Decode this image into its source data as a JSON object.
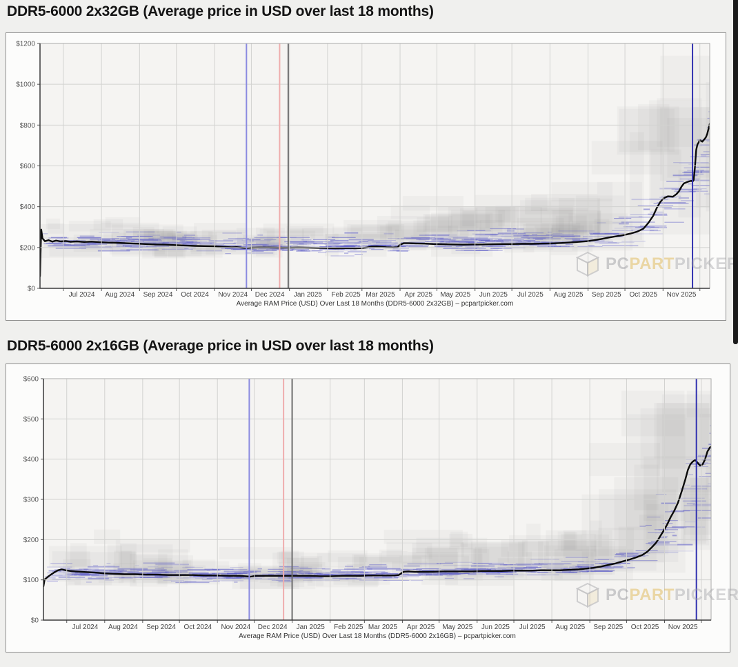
{
  "page": {
    "background": "#f0f0ee"
  },
  "watermark": {
    "pc": "PC",
    "part": "PART",
    "picker": "PICKER"
  },
  "chart_data": [
    {
      "type": "line",
      "title": "DDR5-6000 2x32GB (Average price in USD over last 18 months)",
      "caption": "Average RAM Price (USD) Over Last 18 Months (DDR5-6000 2x32GB) – pcpartpicker.com",
      "ylim": [
        0,
        1200
      ],
      "yticks": [
        {
          "label": "$0",
          "value": 0
        },
        {
          "label": "$200",
          "value": 200
        },
        {
          "label": "$400",
          "value": 400
        },
        {
          "label": "$600",
          "value": 600
        },
        {
          "label": "$800",
          "value": 800
        },
        {
          "label": "$1000",
          "value": 1000
        },
        {
          "label": "$1200",
          "value": 1200
        }
      ],
      "x_total_days": 545,
      "months": [
        {
          "label": "Jul 2024",
          "day": 19
        },
        {
          "label": "Aug 2024",
          "day": 50
        },
        {
          "label": "Sep 2024",
          "day": 81
        },
        {
          "label": "Oct 2024",
          "day": 111
        },
        {
          "label": "Nov 2024",
          "day": 142
        },
        {
          "label": "Dec 2024",
          "day": 172
        },
        {
          "label": "Jan 2025",
          "day": 203
        },
        {
          "label": "Feb 2025",
          "day": 234
        },
        {
          "label": "Mar 2025",
          "day": 262
        },
        {
          "label": "Apr 2025",
          "day": 293
        },
        {
          "label": "May 2025",
          "day": 323
        },
        {
          "label": "Jun 2025",
          "day": 354
        },
        {
          "label": "Jul 2025",
          "day": 384
        },
        {
          "label": "Aug 2025",
          "day": 415
        },
        {
          "label": "Sep 2025",
          "day": 446
        },
        {
          "label": "Oct 2025",
          "day": 476
        },
        {
          "label": "Nov 2025",
          "day": 507
        }
      ],
      "extra_month_gridline_day": 537,
      "vlines": [
        {
          "day": 168,
          "color": "#8a8ae0",
          "name": "blue-vline"
        },
        {
          "day": 195,
          "color": "#efadad",
          "name": "red-vline"
        },
        {
          "day": 202,
          "color": "#6e6e6e",
          "name": "dark-vline"
        },
        {
          "day": 531,
          "color": "#3232b0",
          "name": "navy-vline"
        }
      ],
      "average_series": [
        [
          0,
          60
        ],
        [
          0.6,
          210
        ],
        [
          1,
          288
        ],
        [
          2,
          245
        ],
        [
          4,
          231
        ],
        [
          7,
          236
        ],
        [
          10,
          229
        ],
        [
          13,
          234
        ],
        [
          17,
          230
        ],
        [
          21,
          232
        ],
        [
          25,
          228
        ],
        [
          30,
          230
        ],
        [
          36,
          227
        ],
        [
          42,
          229
        ],
        [
          48,
          226
        ],
        [
          55,
          224
        ],
        [
          62,
          223
        ],
        [
          70,
          221
        ],
        [
          78,
          219
        ],
        [
          86,
          217
        ],
        [
          94,
          215
        ],
        [
          102,
          214
        ],
        [
          110,
          212
        ],
        [
          118,
          210
        ],
        [
          126,
          208
        ],
        [
          134,
          207
        ],
        [
          142,
          206
        ],
        [
          150,
          203
        ],
        [
          156,
          201
        ],
        [
          160,
          202
        ],
        [
          164,
          199
        ],
        [
          168,
          197
        ],
        [
          172,
          199
        ],
        [
          178,
          200
        ],
        [
          186,
          200
        ],
        [
          194,
          199
        ],
        [
          202,
          199
        ],
        [
          210,
          200
        ],
        [
          218,
          199
        ],
        [
          226,
          198
        ],
        [
          234,
          197
        ],
        [
          242,
          196
        ],
        [
          250,
          197
        ],
        [
          256,
          196
        ],
        [
          262,
          197
        ],
        [
          266,
          200
        ],
        [
          270,
          204
        ],
        [
          274,
          205
        ],
        [
          278,
          203
        ],
        [
          282,
          201
        ],
        [
          287,
          200
        ],
        [
          291,
          201
        ],
        [
          293,
          214
        ],
        [
          296,
          221
        ],
        [
          300,
          221
        ],
        [
          306,
          220
        ],
        [
          313,
          219
        ],
        [
          320,
          217
        ],
        [
          328,
          216
        ],
        [
          336,
          215
        ],
        [
          344,
          214
        ],
        [
          352,
          215
        ],
        [
          360,
          215
        ],
        [
          368,
          216
        ],
        [
          376,
          217
        ],
        [
          384,
          217
        ],
        [
          392,
          218
        ],
        [
          400,
          218
        ],
        [
          408,
          219
        ],
        [
          416,
          220
        ],
        [
          424,
          222
        ],
        [
          432,
          225
        ],
        [
          439,
          228
        ],
        [
          445,
          231
        ],
        [
          451,
          236
        ],
        [
          457,
          242
        ],
        [
          463,
          249
        ],
        [
          469,
          255
        ],
        [
          475,
          261
        ],
        [
          481,
          269
        ],
        [
          486,
          278
        ],
        [
          491,
          292
        ],
        [
          495,
          320
        ],
        [
          499,
          355
        ],
        [
          502,
          395
        ],
        [
          505,
          425
        ],
        [
          508,
          443
        ],
        [
          511,
          451
        ],
        [
          515,
          449
        ],
        [
          518,
          462
        ],
        [
          520,
          476
        ],
        [
          522,
          498
        ],
        [
          524,
          514
        ],
        [
          527,
          522
        ],
        [
          530,
          527
        ],
        [
          531,
          523
        ],
        [
          532,
          531
        ],
        [
          533,
          595
        ],
        [
          534,
          678
        ],
        [
          535,
          705
        ],
        [
          536,
          715
        ],
        [
          537,
          727
        ],
        [
          538,
          722
        ],
        [
          539,
          719
        ],
        [
          540,
          726
        ],
        [
          541,
          733
        ],
        [
          542,
          742
        ],
        [
          543,
          757
        ],
        [
          544,
          781
        ],
        [
          545,
          806
        ]
      ],
      "band_envelope": [
        [
          0,
          165,
          300,
          150,
          320
        ],
        [
          100,
          160,
          295,
          145,
          315
        ],
        [
          170,
          150,
          285,
          140,
          300
        ],
        [
          200,
          150,
          280,
          140,
          300
        ],
        [
          260,
          155,
          285,
          145,
          310
        ],
        [
          290,
          160,
          300,
          150,
          360
        ],
        [
          330,
          165,
          310,
          150,
          400
        ],
        [
          380,
          170,
          315,
          155,
          420
        ],
        [
          420,
          170,
          320,
          160,
          430
        ],
        [
          446,
          175,
          340,
          160,
          480
        ],
        [
          462,
          180,
          380,
          165,
          560
        ],
        [
          476,
          190,
          450,
          170,
          700
        ],
        [
          490,
          200,
          560,
          180,
          850
        ],
        [
          505,
          230,
          700,
          200,
          1000
        ],
        [
          515,
          260,
          780,
          220,
          1020
        ],
        [
          525,
          300,
          850,
          250,
          1040
        ],
        [
          535,
          380,
          920,
          300,
          1060
        ],
        [
          545,
          450,
          960,
          350,
          1080
        ]
      ],
      "colors": {
        "average_line": "#0a0a0a",
        "listing_dash": "#5a5ac8",
        "range_fill": "#70707a",
        "grid": "#d2d2d0",
        "plot_bg": "#f5f4f2",
        "axis": "#3a3a3a"
      },
      "seed": 7
    },
    {
      "type": "line",
      "title": "DDR5-6000 2x16GB (Average price in USD over last 18 months)",
      "caption": "Average RAM Price (USD) Over Last 18 Months (DDR5-6000 2x16GB) – pcpartpicker.com",
      "ylim": [
        0,
        600
      ],
      "yticks": [
        {
          "label": "$0",
          "value": 0
        },
        {
          "label": "$100",
          "value": 100
        },
        {
          "label": "$200",
          "value": 200
        },
        {
          "label": "$300",
          "value": 300
        },
        {
          "label": "$400",
          "value": 400
        },
        {
          "label": "$500",
          "value": 500
        },
        {
          "label": "$600",
          "value": 600
        }
      ],
      "x_total_days": 545,
      "months": [
        {
          "label": "Jul 2024",
          "day": 19
        },
        {
          "label": "Aug 2024",
          "day": 50
        },
        {
          "label": "Sep 2024",
          "day": 81
        },
        {
          "label": "Oct 2024",
          "day": 111
        },
        {
          "label": "Nov 2024",
          "day": 142
        },
        {
          "label": "Dec 2024",
          "day": 172
        },
        {
          "label": "Jan 2025",
          "day": 203
        },
        {
          "label": "Feb 2025",
          "day": 234
        },
        {
          "label": "Mar 2025",
          "day": 262
        },
        {
          "label": "Apr 2025",
          "day": 293
        },
        {
          "label": "May 2025",
          "day": 323
        },
        {
          "label": "Jun 2025",
          "day": 354
        },
        {
          "label": "Jul 2025",
          "day": 384
        },
        {
          "label": "Aug 2025",
          "day": 415
        },
        {
          "label": "Sep 2025",
          "day": 446
        },
        {
          "label": "Oct 2025",
          "day": 476
        },
        {
          "label": "Nov 2025",
          "day": 507
        }
      ],
      "extra_month_gridline_day": 537,
      "vlines": [
        {
          "day": 168,
          "color": "#8a8ae0",
          "name": "blue-vline"
        },
        {
          "day": 196,
          "color": "#efadad",
          "name": "red-vline"
        },
        {
          "day": 203,
          "color": "#6e6e6e",
          "name": "dark-vline"
        },
        {
          "day": 533,
          "color": "#3232b0",
          "name": "navy-vline"
        }
      ],
      "average_series": [
        [
          0,
          84
        ],
        [
          0.6,
          95
        ],
        [
          1,
          101
        ],
        [
          3,
          106
        ],
        [
          6,
          113
        ],
        [
          9,
          119
        ],
        [
          12,
          124
        ],
        [
          15,
          126
        ],
        [
          18,
          124
        ],
        [
          22,
          122
        ],
        [
          26,
          121
        ],
        [
          31,
          120
        ],
        [
          37,
          119
        ],
        [
          43,
          118
        ],
        [
          50,
          116
        ],
        [
          58,
          115
        ],
        [
          66,
          114
        ],
        [
          75,
          114
        ],
        [
          84,
          113
        ],
        [
          93,
          113
        ],
        [
          102,
          112
        ],
        [
          112,
          112
        ],
        [
          122,
          112
        ],
        [
          132,
          111
        ],
        [
          142,
          111
        ],
        [
          152,
          110
        ],
        [
          160,
          110
        ],
        [
          165,
          109
        ],
        [
          169,
          108
        ],
        [
          173,
          110
        ],
        [
          181,
          110
        ],
        [
          190,
          110
        ],
        [
          199,
          110
        ],
        [
          208,
          110
        ],
        [
          217,
          110
        ],
        [
          226,
          109
        ],
        [
          235,
          109
        ],
        [
          244,
          110
        ],
        [
          252,
          110
        ],
        [
          259,
          110
        ],
        [
          265,
          111
        ],
        [
          272,
          111
        ],
        [
          279,
          111
        ],
        [
          286,
          111
        ],
        [
          290,
          112
        ],
        [
          292,
          116
        ],
        [
          294,
          120
        ],
        [
          298,
          121
        ],
        [
          303,
          120
        ],
        [
          310,
          120
        ],
        [
          318,
          120
        ],
        [
          326,
          121
        ],
        [
          334,
          121
        ],
        [
          342,
          121
        ],
        [
          350,
          121
        ],
        [
          358,
          122
        ],
        [
          366,
          122
        ],
        [
          374,
          122
        ],
        [
          382,
          123
        ],
        [
          390,
          123
        ],
        [
          398,
          123
        ],
        [
          406,
          124
        ],
        [
          414,
          124
        ],
        [
          422,
          124
        ],
        [
          430,
          125
        ],
        [
          437,
          126
        ],
        [
          443,
          128
        ],
        [
          449,
          130
        ],
        [
          455,
          133
        ],
        [
          461,
          137
        ],
        [
          467,
          141
        ],
        [
          473,
          146
        ],
        [
          479,
          151
        ],
        [
          484,
          156
        ],
        [
          489,
          162
        ],
        [
          493,
          170
        ],
        [
          497,
          182
        ],
        [
          500,
          192
        ],
        [
          503,
          206
        ],
        [
          506,
          221
        ],
        [
          509,
          237
        ],
        [
          512,
          256
        ],
        [
          515,
          272
        ],
        [
          518,
          292
        ],
        [
          521,
          320
        ],
        [
          524,
          350
        ],
        [
          526,
          373
        ],
        [
          528,
          387
        ],
        [
          530,
          394
        ],
        [
          532,
          398
        ],
        [
          534,
          391
        ],
        [
          536,
          384
        ],
        [
          538,
          387
        ],
        [
          540,
          399
        ],
        [
          542,
          419
        ],
        [
          544,
          429
        ],
        [
          545,
          431
        ]
      ],
      "band_envelope": [
        [
          0,
          85,
          150,
          75,
          205
        ],
        [
          50,
          88,
          150,
          78,
          200
        ],
        [
          100,
          88,
          145,
          78,
          185
        ],
        [
          170,
          85,
          140,
          75,
          175
        ],
        [
          230,
          85,
          140,
          75,
          170
        ],
        [
          290,
          90,
          150,
          80,
          185
        ],
        [
          330,
          92,
          155,
          82,
          210
        ],
        [
          380,
          95,
          158,
          85,
          215
        ],
        [
          420,
          95,
          160,
          85,
          220
        ],
        [
          446,
          98,
          170,
          88,
          240
        ],
        [
          462,
          100,
          190,
          90,
          290
        ],
        [
          476,
          105,
          230,
          95,
          380
        ],
        [
          490,
          115,
          290,
          100,
          470
        ],
        [
          505,
          130,
          350,
          110,
          540
        ],
        [
          515,
          150,
          420,
          120,
          580
        ],
        [
          525,
          180,
          470,
          140,
          600
        ],
        [
          535,
          230,
          520,
          170,
          600
        ],
        [
          545,
          280,
          560,
          200,
          600
        ]
      ],
      "colors": {
        "average_line": "#0a0a0a",
        "listing_dash": "#5a5ac8",
        "range_fill": "#70707a",
        "grid": "#d2d2d0",
        "plot_bg": "#f5f4f2",
        "axis": "#3a3a3a"
      },
      "seed": 13
    }
  ]
}
